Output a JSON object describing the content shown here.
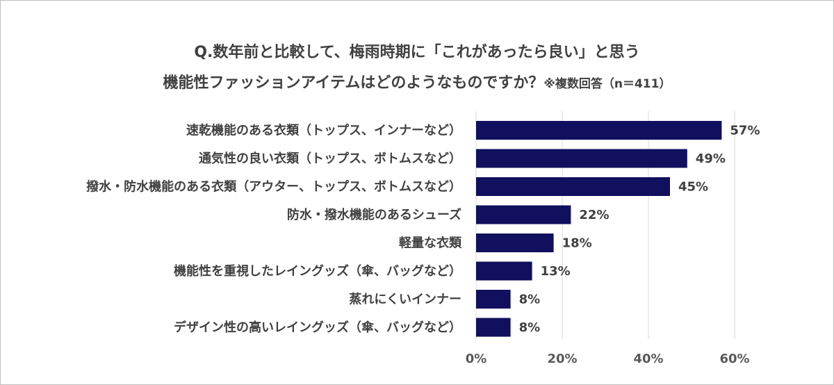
{
  "chart_data": {
    "type": "bar",
    "orientation": "horizontal",
    "title_line1": "Q.数年前と比較して、梅雨時期に「これがあったら良い」と思う",
    "title_line2": "機能性ファッションアイテムはどのようなものですか？",
    "title_note": "※複数回答（n＝411）",
    "categories": [
      "速乾機能のある衣類（トップス、インナーなど）",
      "通気性の良い衣類（トップス、ボトムスなど）",
      "撥水・防水機能のある衣類（アウター、トップス、ボトムスなど）",
      "防水・撥水機能のあるシューズ",
      "軽量な衣類",
      "機能性を重視したレイングッズ（傘、バッグなど）",
      "蒸れにくいインナー",
      "デザイン性の高いレイングッズ（傘、バッグなど）"
    ],
    "values": [
      57,
      49,
      45,
      22,
      18,
      13,
      8,
      8
    ],
    "value_labels": [
      "57%",
      "49%",
      "45%",
      "22%",
      "18%",
      "13%",
      "8%",
      "8%"
    ],
    "xlim": [
      0,
      60
    ],
    "x_ticks": [
      0,
      20,
      40,
      60
    ],
    "x_tick_labels": [
      "0%",
      "20%",
      "40%",
      "60%"
    ],
    "grid": "vertical",
    "bar_color": "#10105e",
    "grid_color": "#d9d9d9",
    "legend": "none"
  }
}
